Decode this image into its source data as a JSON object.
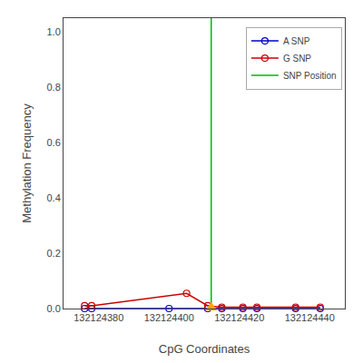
{
  "chart_data": {
    "type": "line",
    "xlabel": "CpG Coordinates",
    "ylabel": "Methylation Frequency",
    "xlim": [
      132124370,
      132124450
    ],
    "ylim": [
      0.0,
      1.05
    ],
    "xticks": [
      132124380,
      132124400,
      132124420,
      132124440
    ],
    "yticks": [
      {
        "value": 0.0,
        "label": "0.0"
      },
      0.2,
      0.4,
      0.6,
      0.8,
      {
        "value": 1.0,
        "label": "1.0"
      }
    ],
    "grid": false,
    "legend": "upper right",
    "series": [
      {
        "name": "A SNP",
        "type": "line",
        "color": "#0000cc",
        "marker": "circle-open",
        "x": [
          132124376,
          132124378,
          132124400,
          132124411,
          132124415,
          132124421,
          132124425,
          132124436,
          132124443
        ],
        "values": [
          0.0,
          0.0,
          0.0,
          0.0,
          0.0,
          0.0,
          0.0,
          0.0,
          0.0
        ]
      },
      {
        "name": "G SNP",
        "type": "line",
        "color": "#cc0000",
        "marker": "circle-open",
        "x": [
          132124376,
          132124378,
          132124405,
          132124411,
          132124415,
          132124421,
          132124425,
          132124436,
          132124443
        ],
        "values": [
          0.01,
          0.01,
          0.055,
          0.01,
          0.005,
          0.005,
          0.005,
          0.005,
          0.005
        ]
      },
      {
        "name": "SNP Position",
        "type": "vline",
        "color": "#00bb00",
        "x": [
          132124412
        ]
      },
      {
        "type": "scatter",
        "color": "#FFA500",
        "marker": "triangle-up",
        "x": [
          132124412
        ],
        "values": [
          0.003
        ]
      }
    ]
  }
}
